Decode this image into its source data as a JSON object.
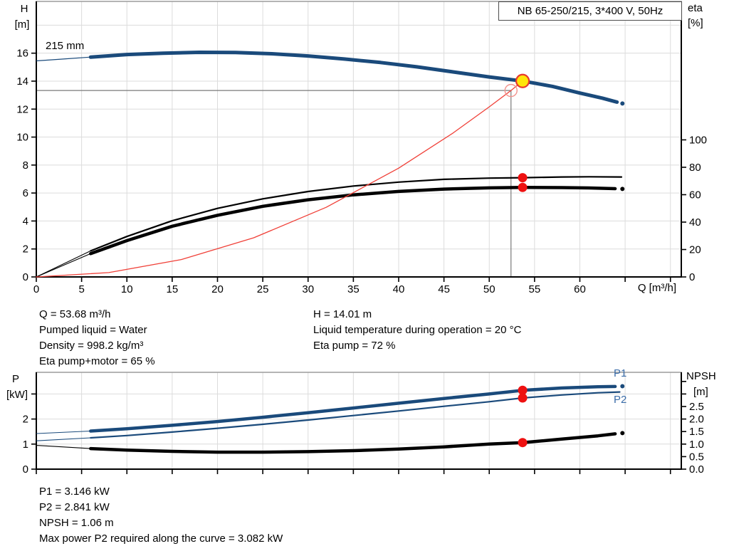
{
  "title_box": {
    "text": "NB 65-250/215, 3*400 V, 50Hz"
  },
  "labels": {
    "h_axis_1": "H",
    "h_axis_2": "[m]",
    "eta_axis_1": "eta",
    "eta_axis_2": "[%]",
    "q_axis": "Q [m³/h]",
    "impeller": "215 mm",
    "p_axis_1": "P",
    "p_axis_2": "[kW]",
    "npsh_axis_1": "NPSH",
    "npsh_axis_2": "[m]",
    "p1": "P1",
    "p2": "P2"
  },
  "top_info": {
    "left": [
      "Q = 53.68 m³/h",
      "Pumped liquid = Water",
      "Density = 998.2 kg/m³",
      "Eta pump+motor = 65 %"
    ],
    "right": [
      "H = 14.01 m",
      "Liquid temperature during operation = 20 °C",
      "Eta pump = 72 %"
    ]
  },
  "bottom_info": [
    "P1 = 3.146 kW",
    "P2 = 2.841 kW",
    "NPSH = 1.06 m",
    "Max power P2 required along the curve = 3.082 kW"
  ],
  "colors": {
    "curve_blue": "#1a4a7b",
    "label_blue": "#3a6ca8",
    "red": "#ee1111",
    "system_red": "#f04038",
    "pink_red": "#f2928c",
    "yellow": "#ffe50a",
    "yellow_ring": "#e8392e",
    "grid": "#dcdcdc",
    "border_gray": "#9c9c9c",
    "crosshair": "#7a7a7a",
    "black": "#000000"
  },
  "chart_data": [
    {
      "type": "line",
      "name": "head-and-efficiency-vs-flow",
      "x_axis": {
        "label": "Q [m³/h]",
        "range": [
          0,
          71.2
        ],
        "ticks": [
          0,
          5,
          10,
          15,
          20,
          25,
          30,
          35,
          40,
          45,
          50,
          55,
          60,
          65,
          70
        ],
        "labels": [
          "0",
          "5",
          "10",
          "15",
          "20",
          "25",
          "30",
          "35",
          "40",
          "45",
          "50",
          "55",
          "60"
        ],
        "grid": [
          5,
          10,
          15,
          20,
          25,
          30,
          35,
          40,
          45,
          50,
          55,
          60,
          65,
          70
        ]
      },
      "y_axis": {
        "label": "H [m]",
        "range": [
          0,
          19.7
        ],
        "ticks": [
          0,
          2,
          4,
          6,
          8,
          10,
          12,
          14,
          16
        ],
        "labels": [
          "0",
          "2",
          "4",
          "6",
          "8",
          "10",
          "12",
          "14",
          "16"
        ],
        "grid": [
          2,
          4,
          6,
          8,
          10,
          12,
          14,
          16,
          18
        ]
      },
      "y2_axis": {
        "label": "eta [%]",
        "range": [
          0,
          201
        ],
        "ticks": [
          0,
          20,
          40,
          60,
          80,
          100
        ],
        "labels": [
          "0",
          "20",
          "40",
          "60",
          "80",
          "100"
        ]
      },
      "crosshair": {
        "q": 52.4,
        "v": 13.33
      },
      "series": [
        {
          "name": "eta-pump",
          "color": "#000000",
          "width": 2.2,
          "thin_width": 1.1,
          "thin_until": 6,
          "end_dot": false,
          "axis": "y2",
          "points": [
            [
              0,
              0
            ],
            [
              6,
              19
            ],
            [
              10,
              29.5
            ],
            [
              15,
              41
            ],
            [
              20,
              50
            ],
            [
              25,
              57
            ],
            [
              30,
              62.3
            ],
            [
              35,
              66.3
            ],
            [
              40,
              69.2
            ],
            [
              45,
              71.2
            ],
            [
              50,
              72.1
            ],
            [
              53.68,
              72.4
            ],
            [
              58,
              72.9
            ],
            [
              61,
              73.1
            ],
            [
              64.6,
              72.9
            ]
          ]
        },
        {
          "name": "eta-pump-motor",
          "color": "#000000",
          "width": 4.5,
          "thin_width": 1.1,
          "thin_until": 6,
          "end_dot": true,
          "axis": "y2",
          "points": [
            [
              0,
              0
            ],
            [
              6,
              17
            ],
            [
              10,
              26.5
            ],
            [
              15,
              37
            ],
            [
              20,
              45
            ],
            [
              25,
              51.5
            ],
            [
              30,
              56.3
            ],
            [
              35,
              59.9
            ],
            [
              40,
              62.4
            ],
            [
              45,
              64.1
            ],
            [
              50,
              65
            ],
            [
              53.68,
              65.3
            ],
            [
              58,
              65.2
            ],
            [
              61,
              64.9
            ],
            [
              63.9,
              64.4
            ],
            [
              64.7,
              64.2
            ]
          ]
        },
        {
          "name": "system-curve",
          "color": "#f04038",
          "width": 1.3,
          "thin_width": 1.3,
          "thin_until": 0,
          "end_dot": false,
          "axis": "y",
          "points": [
            [
              0,
              0
            ],
            [
              8,
              0.31
            ],
            [
              16,
              1.24
            ],
            [
              24,
              2.8
            ],
            [
              32,
              4.98
            ],
            [
              40,
              7.78
            ],
            [
              46,
              10.29
            ],
            [
              50,
              12.16
            ],
            [
              52.4,
              13.33
            ],
            [
              53.68,
              14.01
            ]
          ]
        },
        {
          "name": "head-215mm",
          "color": "#1a4a7b",
          "width": 5,
          "thin_width": 1.2,
          "thin_until": 6,
          "end_dot": true,
          "axis": "y",
          "points": [
            [
              0,
              15.45
            ],
            [
              3,
              15.58
            ],
            [
              6,
              15.72
            ],
            [
              10,
              15.9
            ],
            [
              14,
              16.0
            ],
            [
              18,
              16.06
            ],
            [
              22,
              16.05
            ],
            [
              26,
              15.96
            ],
            [
              30,
              15.8
            ],
            [
              34,
              15.58
            ],
            [
              38,
              15.33
            ],
            [
              42,
              15.02
            ],
            [
              46,
              14.66
            ],
            [
              50,
              14.3
            ],
            [
              53.68,
              14.01
            ],
            [
              57,
              13.62
            ],
            [
              60,
              13.15
            ],
            [
              62.5,
              12.78
            ],
            [
              64.1,
              12.5
            ],
            [
              64.7,
              12.4
            ]
          ]
        }
      ],
      "markers": [
        {
          "name": "eta-pump-point",
          "type": "dot",
          "axis": "y2",
          "q": 53.68,
          "v": 72.4,
          "color": "#ee1111",
          "r": 6.5
        },
        {
          "name": "eta-pump-motor-point",
          "type": "dot",
          "axis": "y2",
          "q": 53.68,
          "v": 65.3,
          "color": "#ee1111",
          "r": 6.5
        },
        {
          "name": "duty-request-circle",
          "type": "open",
          "axis": "y",
          "q": 52.4,
          "v": 13.33,
          "color": "#f2928c",
          "r": 8.5
        },
        {
          "name": "duty-point",
          "type": "ring",
          "axis": "y",
          "q": 53.68,
          "v": 14.01,
          "fill": "#ffe50a",
          "stroke": "#e8392e",
          "r": 9
        }
      ]
    },
    {
      "type": "line",
      "name": "power-and-npsh-vs-flow",
      "x_axis": {
        "label": "",
        "range": [
          0,
          71.2
        ],
        "ticks": [
          0,
          5,
          10,
          15,
          20,
          25,
          30,
          35,
          40,
          45,
          50,
          55,
          60,
          65,
          70
        ],
        "labels": [],
        "grid": [
          5,
          10,
          15,
          20,
          25,
          30,
          35,
          40,
          45,
          50,
          55,
          60,
          65,
          70
        ]
      },
      "y_axis": {
        "label": "P [kW]",
        "range": [
          0,
          3.864
        ],
        "ticks": [
          0,
          1,
          2,
          3
        ],
        "labels": [
          "0",
          "1",
          "2"
        ],
        "grid": [
          1,
          2,
          3
        ]
      },
      "y2_axis": {
        "label": "NPSH [m]",
        "range": [
          0,
          3.864
        ],
        "ticks": [
          0,
          0.5,
          1,
          1.5,
          2,
          2.5,
          3,
          3.5
        ],
        "labels": [
          "0.0",
          "0.5",
          "1.0",
          "1.5",
          "2.0",
          "2.5"
        ]
      },
      "series": [
        {
          "name": "power-p2",
          "color": "#1a4a7b",
          "width": 2.2,
          "thin_width": 1.1,
          "thin_until": 6,
          "end_dot": false,
          "axis": "y",
          "points": [
            [
              0,
              1.13
            ],
            [
              6,
              1.25
            ],
            [
              10,
              1.34
            ],
            [
              15,
              1.48
            ],
            [
              20,
              1.63
            ],
            [
              25,
              1.79
            ],
            [
              30,
              1.96
            ],
            [
              35,
              2.14
            ],
            [
              40,
              2.32
            ],
            [
              45,
              2.51
            ],
            [
              50,
              2.69
            ],
            [
              53.68,
              2.841
            ],
            [
              58,
              2.96
            ],
            [
              62,
              3.05
            ],
            [
              64.4,
              3.08
            ]
          ]
        },
        {
          "name": "power-p1",
          "color": "#1a4a7b",
          "width": 4.5,
          "thin_width": 1.1,
          "thin_until": 6,
          "end_dot": true,
          "axis": "y",
          "points": [
            [
              0,
              1.42
            ],
            [
              6,
              1.52
            ],
            [
              10,
              1.61
            ],
            [
              15,
              1.75
            ],
            [
              20,
              1.9
            ],
            [
              25,
              2.07
            ],
            [
              30,
              2.25
            ],
            [
              35,
              2.44
            ],
            [
              40,
              2.63
            ],
            [
              45,
              2.82
            ],
            [
              50,
              3.0
            ],
            [
              53.68,
              3.146
            ],
            [
              58,
              3.24
            ],
            [
              62,
              3.29
            ],
            [
              63.9,
              3.3
            ],
            [
              64.7,
              3.31
            ]
          ]
        },
        {
          "name": "npsh",
          "color": "#000000",
          "width": 4.5,
          "thin_width": 1.1,
          "thin_until": 6,
          "end_dot": true,
          "axis": "y2",
          "points": [
            [
              0,
              0.95
            ],
            [
              6,
              0.82
            ],
            [
              10,
              0.76
            ],
            [
              15,
              0.71
            ],
            [
              20,
              0.68
            ],
            [
              25,
              0.68
            ],
            [
              30,
              0.7
            ],
            [
              35,
              0.74
            ],
            [
              40,
              0.8
            ],
            [
              45,
              0.89
            ],
            [
              50,
              1.0
            ],
            [
              53.68,
              1.06
            ],
            [
              58,
              1.2
            ],
            [
              62,
              1.33
            ],
            [
              63.9,
              1.41
            ],
            [
              64.7,
              1.44
            ]
          ]
        }
      ],
      "markers": [
        {
          "name": "p1-point",
          "type": "dot",
          "axis": "y",
          "q": 53.68,
          "v": 3.146,
          "color": "#ee1111",
          "r": 6.5
        },
        {
          "name": "p2-point",
          "type": "dot",
          "axis": "y",
          "q": 53.68,
          "v": 2.841,
          "color": "#ee1111",
          "r": 6.5
        },
        {
          "name": "npsh-point",
          "type": "dot",
          "axis": "y2",
          "q": 53.68,
          "v": 1.06,
          "color": "#ee1111",
          "r": 6.5
        }
      ]
    }
  ]
}
